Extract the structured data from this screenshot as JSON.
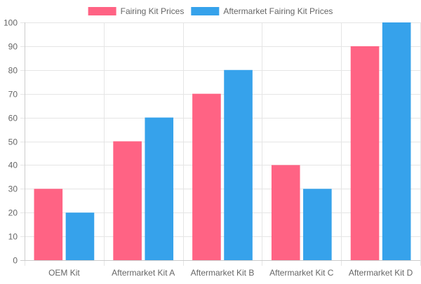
{
  "chart_data": {
    "type": "bar",
    "title": "",
    "xlabel": "",
    "ylabel": "",
    "categories": [
      "OEM Kit",
      "Aftermarket Kit A",
      "Aftermarket Kit B",
      "Aftermarket Kit C",
      "Aftermarket Kit D"
    ],
    "series": [
      {
        "name": "Fairing Kit Prices",
        "values": [
          30,
          50,
          70,
          40,
          90
        ],
        "color": "#ff6384"
      },
      {
        "name": "Aftermarket Fairing Kit Prices",
        "values": [
          20,
          60,
          80,
          30,
          100
        ],
        "color": "#36a2eb"
      }
    ],
    "ylim": [
      0,
      100
    ],
    "yticks": [
      0,
      10,
      20,
      30,
      40,
      50,
      60,
      70,
      80,
      90,
      100
    ],
    "grid": true,
    "legend": "top-center",
    "colors": {
      "grid": "#e5e5e5",
      "tick_label": "#666666"
    }
  }
}
